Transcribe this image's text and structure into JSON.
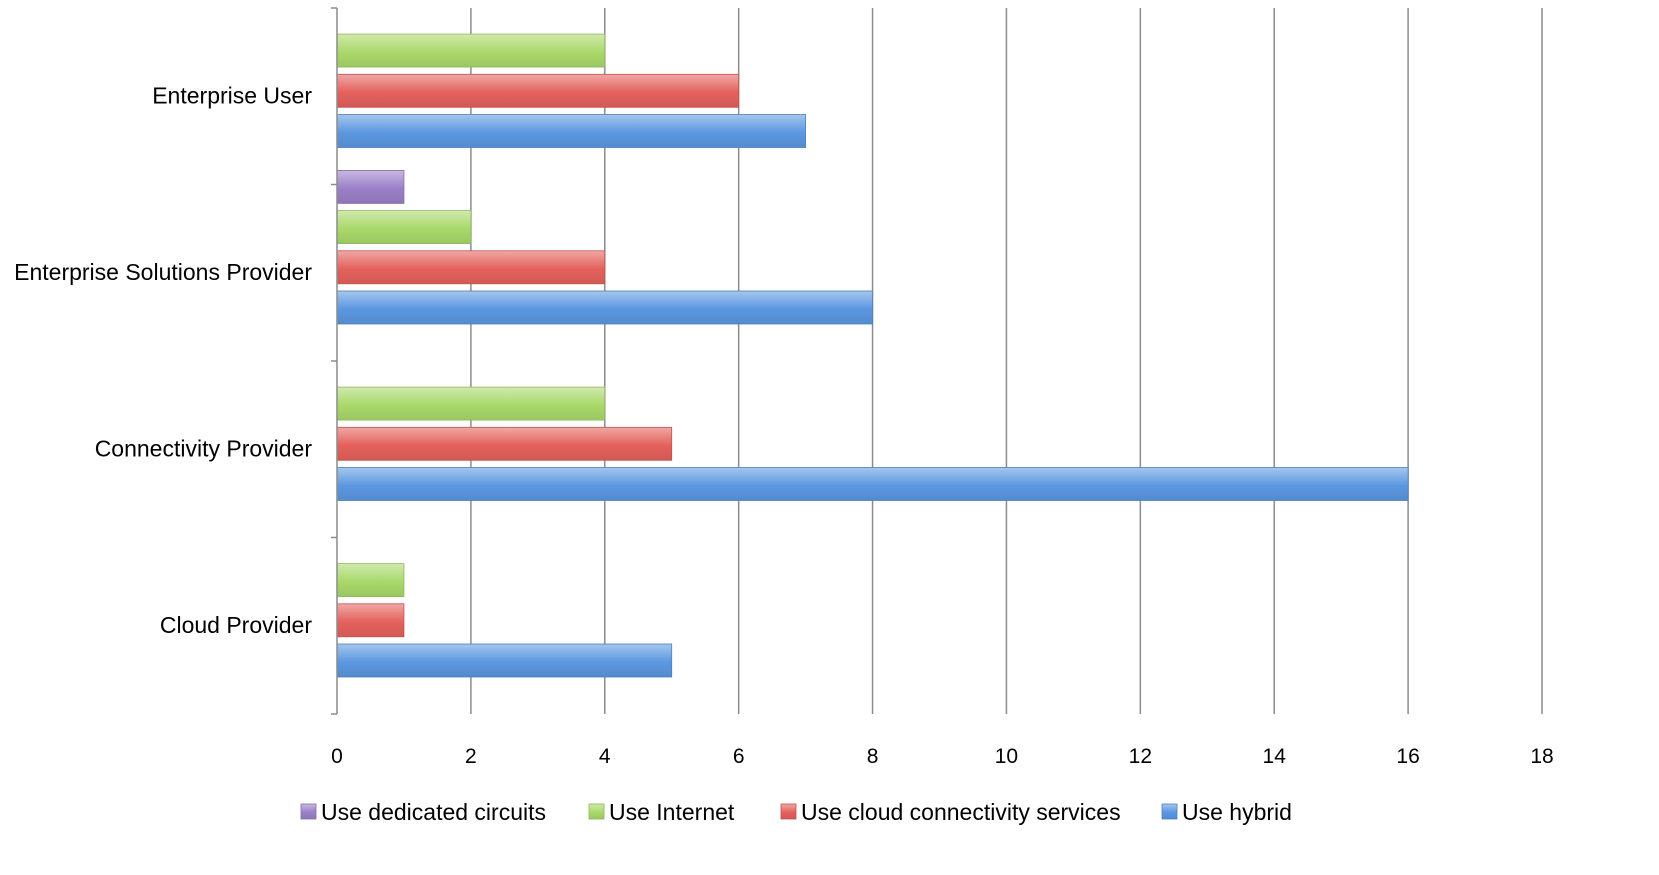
{
  "chart_data": {
    "type": "bar",
    "orientation": "horizontal",
    "categories": [
      "Cloud Provider",
      "Connectivity Provider",
      "Enterprise Solutions Provider",
      "Enterprise User"
    ],
    "series": [
      {
        "name": "Use dedicated circuits",
        "values": [
          0,
          0,
          1,
          0
        ],
        "color": "#9b7fc8"
      },
      {
        "name": "Use Internet",
        "values": [
          1,
          4,
          2,
          4
        ],
        "color": "#a9d86a"
      },
      {
        "name": "Use cloud connectivity services",
        "values": [
          1,
          5,
          4,
          6
        ],
        "color": "#e4615c"
      },
      {
        "name": "Use hybrid",
        "values": [
          5,
          16,
          8,
          7
        ],
        "color": "#5b97e0"
      }
    ],
    "xlim": [
      0,
      18
    ],
    "xticks": [
      0,
      2,
      4,
      6,
      8,
      10,
      12,
      14,
      16,
      18
    ],
    "grid": "vertical",
    "legend_position": "bottom",
    "title": "",
    "xlabel": "",
    "ylabel": ""
  }
}
